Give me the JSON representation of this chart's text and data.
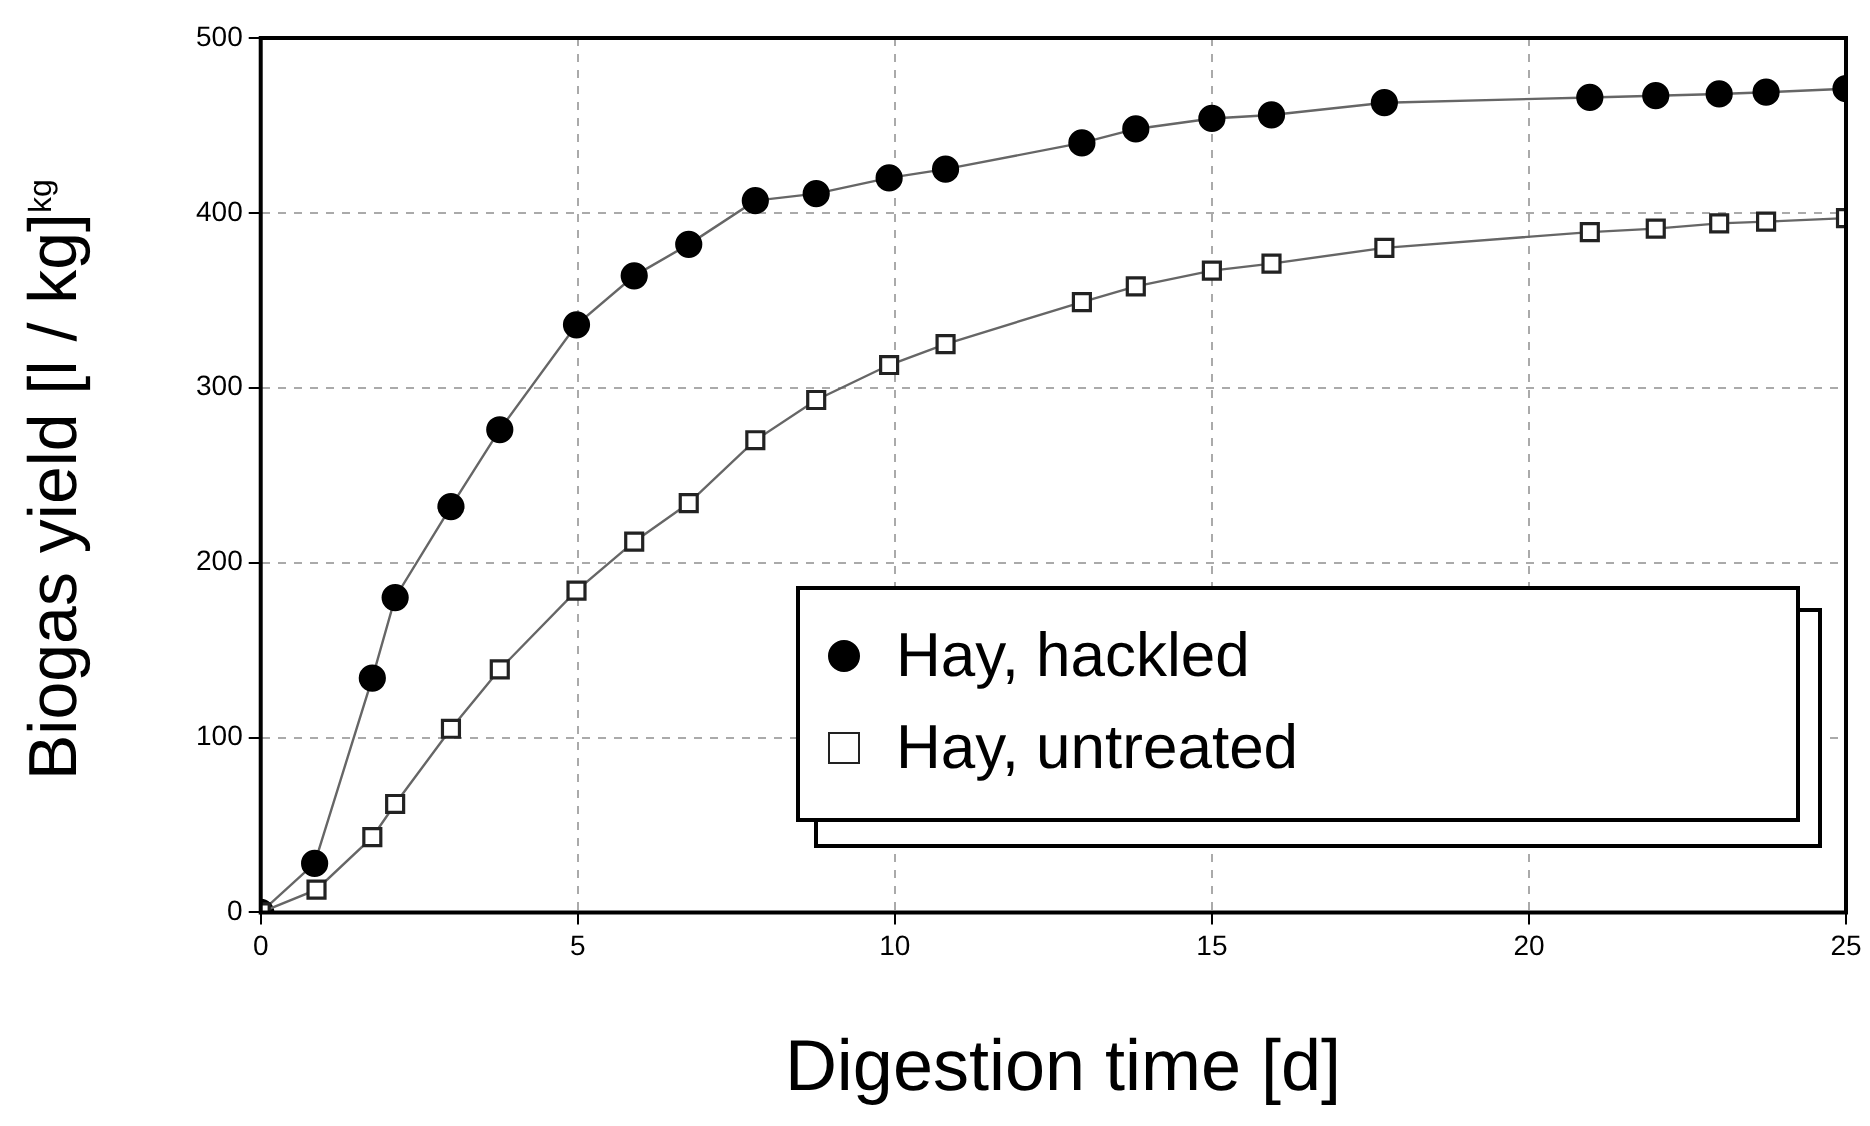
{
  "chart_data": {
    "type": "line",
    "xlabel": "Digestion time [d]",
    "ylabel": "Biogas yield [l / kg]$^{kg}$",
    "xlim": [
      0,
      25
    ],
    "xticks": [
      0,
      5,
      10,
      15,
      20,
      25
    ],
    "ylim": [
      0,
      500
    ],
    "yticks": [
      0,
      100,
      200,
      300,
      400,
      500
    ],
    "grid": true,
    "legend": "bottom right",
    "series": [
      {
        "name": "Hay, hackled",
        "color": "#000000",
        "marker": "circle",
        "x": [
          0,
          0.85,
          1.76,
          2.12,
          3.0,
          3.77,
          4.98,
          5.89,
          6.75,
          7.8,
          8.76,
          9.91,
          10.8,
          12.95,
          13.8,
          15.0,
          15.94,
          17.72,
          20.96,
          22.0,
          23.0,
          23.74,
          25
        ],
        "values": [
          0,
          28,
          134,
          180,
          232,
          276,
          336,
          364,
          382,
          407,
          411,
          420,
          425,
          440,
          448,
          454,
          456,
          463,
          466,
          467,
          468,
          469,
          471
        ]
      },
      {
        "name": "Hay, untreated",
        "color": "#222222",
        "marker": "square",
        "x": [
          0,
          0.88,
          1.76,
          2.12,
          3.0,
          3.77,
          4.98,
          5.89,
          6.75,
          7.8,
          8.76,
          9.91,
          10.8,
          12.95,
          13.8,
          15.0,
          15.94,
          17.72,
          20.96,
          22.0,
          23.0,
          23.74,
          25
        ],
        "values": [
          0,
          13,
          43,
          62,
          105,
          139,
          184,
          212,
          234,
          270,
          293,
          313,
          325,
          349,
          358,
          367,
          371,
          380,
          389,
          391,
          394,
          395,
          397
        ]
      }
    ]
  }
}
